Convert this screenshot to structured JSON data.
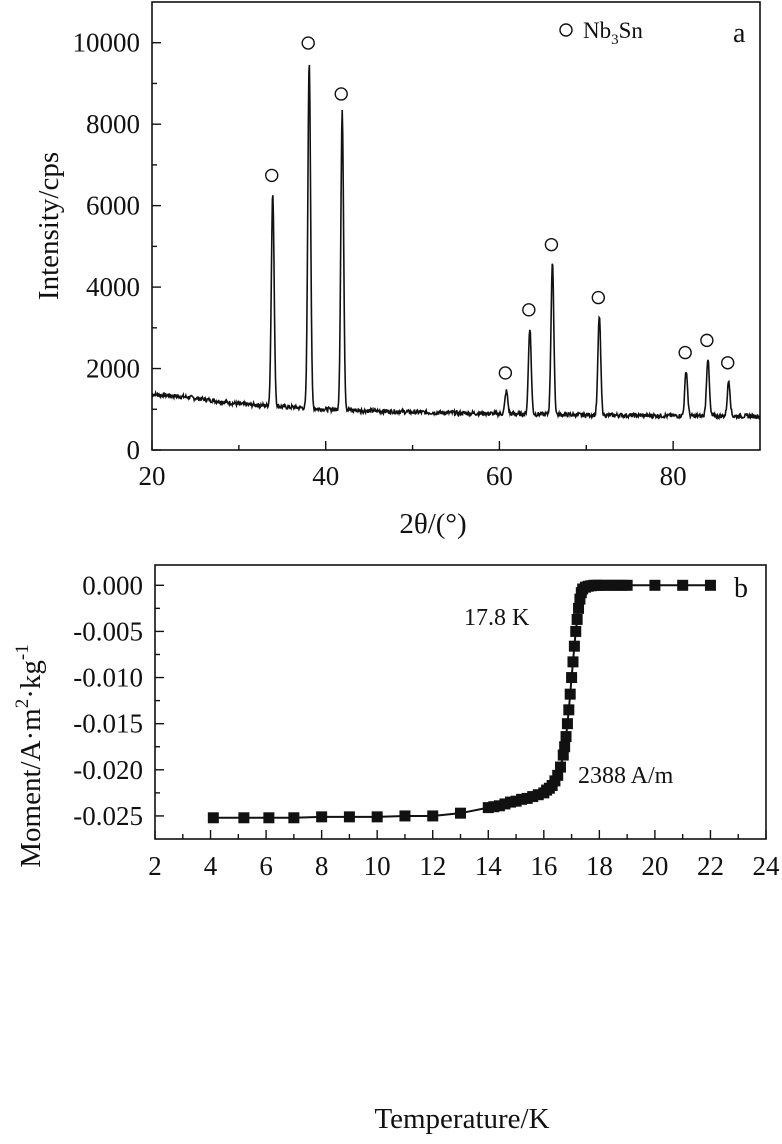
{
  "chart_data": [
    {
      "type": "line",
      "panel_label": "a",
      "xlabel": "2θ/(°)",
      "ylabel": "Intensity/cps",
      "xlim": [
        20,
        90
      ],
      "ylim": [
        0,
        11000
      ],
      "x_ticks": [
        20,
        40,
        60,
        80
      ],
      "y_ticks": [
        0,
        2000,
        4000,
        6000,
        8000,
        10000
      ],
      "grid": false,
      "legend": {
        "entries": [
          {
            "marker": "open-circle",
            "label_main": "Nb",
            "label_sub": "3",
            "label_tail": "Sn"
          }
        ],
        "position": "top-right"
      },
      "peaks": [
        {
          "x": 33.9,
          "y": 6300
        },
        {
          "x": 38.1,
          "y": 9550
        },
        {
          "x": 41.9,
          "y": 8300
        },
        {
          "x": 60.8,
          "y": 1450
        },
        {
          "x": 63.5,
          "y": 3000
        },
        {
          "x": 66.1,
          "y": 4600
        },
        {
          "x": 71.5,
          "y": 3300
        },
        {
          "x": 81.5,
          "y": 1950
        },
        {
          "x": 84.0,
          "y": 2250
        },
        {
          "x": 86.4,
          "y": 1700
        }
      ],
      "baseline": [
        {
          "x": 20,
          "y": 1370
        },
        {
          "x": 24,
          "y": 1300
        },
        {
          "x": 30,
          "y": 1130
        },
        {
          "x": 40,
          "y": 1000
        },
        {
          "x": 50,
          "y": 930
        },
        {
          "x": 60,
          "y": 890
        },
        {
          "x": 70,
          "y": 860
        },
        {
          "x": 80,
          "y": 840
        },
        {
          "x": 90,
          "y": 830
        }
      ]
    },
    {
      "type": "line",
      "panel_label": "b",
      "xlabel": "Temperature/K",
      "ylabel_main": "Moment/A·m",
      "ylabel_sup1": "2",
      "ylabel_mid": "·kg",
      "ylabel_sup2": "-1",
      "xlim": [
        2,
        24
      ],
      "ylim": [
        -0.0275,
        0.0022
      ],
      "x_ticks": [
        2,
        4,
        6,
        8,
        10,
        12,
        14,
        16,
        18,
        20,
        22,
        24
      ],
      "y_ticks": [
        0.0,
        -0.005,
        -0.01,
        -0.015,
        -0.02,
        -0.025
      ],
      "y_tick_labels": [
        "0.000",
        "-0.005",
        "-0.010",
        "-0.015",
        "-0.020",
        "-0.025"
      ],
      "grid": false,
      "annotations": [
        "17.8 K",
        "2388 A/m"
      ],
      "series": [
        {
          "marker": "filled-square",
          "x": [
            4.1,
            5.2,
            6.1,
            7.0,
            8.0,
            9.0,
            10.0,
            11.0,
            12.0,
            13.0,
            14.0,
            14.2,
            14.4,
            14.6,
            14.8,
            15.0,
            15.2,
            15.4,
            15.6,
            15.8,
            16.0,
            16.1,
            16.2,
            16.3,
            16.4,
            16.5,
            16.6,
            16.7,
            16.75,
            16.8,
            16.85,
            16.9,
            16.95,
            17.0,
            17.05,
            17.1,
            17.15,
            17.2,
            17.25,
            17.3,
            17.35,
            17.4,
            17.5,
            17.6,
            17.7,
            17.8,
            17.9,
            18.0,
            18.2,
            18.4,
            18.6,
            18.8,
            19.0,
            20.0,
            21.0,
            22.0
          ],
          "y": [
            -0.0252,
            -0.0252,
            -0.0252,
            -0.0252,
            -0.0251,
            -0.0251,
            -0.0251,
            -0.025,
            -0.025,
            -0.0247,
            -0.0241,
            -0.024,
            -0.0239,
            -0.0237,
            -0.0235,
            -0.0234,
            -0.0232,
            -0.0231,
            -0.0229,
            -0.0227,
            -0.0225,
            -0.0222,
            -0.022,
            -0.0217,
            -0.0212,
            -0.0206,
            -0.0197,
            -0.0184,
            -0.0175,
            -0.0164,
            -0.015,
            -0.0135,
            -0.0118,
            -0.01,
            -0.0083,
            -0.0066,
            -0.005,
            -0.0037,
            -0.0025,
            -0.0015,
            -0.0008,
            -0.0004,
            -0.0002,
            -0.0001,
            -5e-05,
            0.0,
            0.0,
            0.0,
            0.0,
            0.0,
            0.0,
            0.0,
            0.0,
            0.0,
            0.0,
            0.0
          ]
        }
      ]
    }
  ]
}
